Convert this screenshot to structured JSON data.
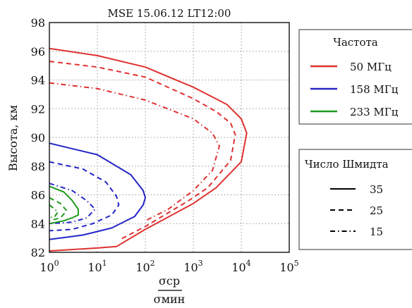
{
  "chart_data": {
    "type": "line",
    "title": "MSE 15.06.12 LT12:00",
    "ylabel": "Высота, км",
    "xlabel": {
      "numerator": "σср",
      "denominator": "σмин"
    },
    "x_scale": "log",
    "xlim": [
      1,
      100000
    ],
    "ylim": [
      82,
      98
    ],
    "x_ticks": [
      {
        "value": 1,
        "base": "10",
        "exp": "0"
      },
      {
        "value": 10,
        "base": "10",
        "exp": "1"
      },
      {
        "value": 100,
        "base": "10",
        "exp": "2"
      },
      {
        "value": 1000,
        "base": "10",
        "exp": "3"
      },
      {
        "value": 10000,
        "base": "10",
        "exp": "4"
      },
      {
        "value": 100000,
        "base": "10",
        "exp": "5"
      }
    ],
    "y_ticks": [
      82,
      84,
      86,
      88,
      90,
      92,
      94,
      96,
      98
    ],
    "grid": true,
    "colors": {
      "50": "#e03131",
      "158": "#2525c8",
      "233": "#1e9a1e"
    },
    "legend_frequency": {
      "title": "Частота",
      "entries": [
        {
          "label": "50 МГц",
          "color": "#e03131"
        },
        {
          "label": "158 МГц",
          "color": "#2525c8"
        },
        {
          "label": "233 МГц",
          "color": "#1e9a1e"
        }
      ]
    },
    "legend_schmidt": {
      "title": "Число Шмидта",
      "entries": [
        {
          "label": "35",
          "style": "solid"
        },
        {
          "label": "25",
          "style": "dashed"
        },
        {
          "label": "15",
          "style": "dashdot"
        }
      ]
    },
    "series": [
      {
        "freq": "50 МГц",
        "schmidt": "35",
        "color": "#e03131",
        "style": "solid",
        "x": [
          1,
          10,
          100,
          1000,
          5000,
          10000,
          13000,
          10000,
          3000,
          1000,
          100,
          25,
          10,
          1
        ],
        "y": [
          96.2,
          95.7,
          94.9,
          93.5,
          92.3,
          91.3,
          90.3,
          88.3,
          86.5,
          85.4,
          83.6,
          82.4,
          82.3,
          82.1
        ]
      },
      {
        "freq": "50 МГц",
        "schmidt": "25",
        "color": "#e03131",
        "style": "dashed",
        "x": [
          1,
          10,
          100,
          1000,
          3000,
          6000,
          7500,
          6000,
          2000,
          800,
          100,
          30
        ],
        "y": [
          95.3,
          94.9,
          94.2,
          92.7,
          91.8,
          91.0,
          90.2,
          88.4,
          86.5,
          85.6,
          83.8,
          82.9
        ]
      },
      {
        "freq": "50 МГц",
        "schmidt": "15",
        "color": "#e03131",
        "style": "dashdot",
        "x": [
          1,
          10,
          100,
          1000,
          2500,
          3500,
          2500,
          1000,
          300,
          100
        ],
        "y": [
          93.8,
          93.4,
          92.6,
          91.3,
          90.3,
          89.4,
          87.7,
          86.3,
          85.0,
          84.2
        ]
      },
      {
        "freq": "158 МГц",
        "schmidt": "35",
        "color": "#2525c8",
        "style": "solid",
        "x": [
          1,
          10,
          50,
          90,
          100,
          90,
          60,
          20,
          5,
          1
        ],
        "y": [
          89.6,
          88.8,
          87.4,
          86.3,
          85.8,
          85.3,
          84.5,
          83.7,
          83.2,
          82.9
        ]
      },
      {
        "freq": "158 МГц",
        "schmidt": "25",
        "color": "#2525c8",
        "style": "dashed",
        "x": [
          1,
          5,
          15,
          25,
          28,
          20,
          8,
          3,
          1
        ],
        "y": [
          88.3,
          87.8,
          86.9,
          85.9,
          85.3,
          84.6,
          84.0,
          83.6,
          83.5
        ]
      },
      {
        "freq": "158 МГц",
        "schmidt": "15",
        "color": "#2525c8",
        "style": "dashdot",
        "x": [
          1,
          3,
          6,
          9,
          6,
          3,
          1
        ],
        "y": [
          86.8,
          86.3,
          85.6,
          85.0,
          84.4,
          84.1,
          84.0
        ]
      },
      {
        "freq": "233 МГц",
        "schmidt": "35",
        "color": "#1e9a1e",
        "style": "solid",
        "x": [
          1,
          2,
          3,
          4,
          4,
          3,
          2,
          1
        ],
        "y": [
          86.6,
          86.2,
          85.6,
          85.0,
          84.6,
          84.4,
          84.2,
          84.0
        ]
      },
      {
        "freq": "233 МГц",
        "schmidt": "25",
        "color": "#1e9a1e",
        "style": "dashed",
        "x": [
          1,
          1.7,
          2.3,
          1.7,
          1
        ],
        "y": [
          85.8,
          85.4,
          84.9,
          84.4,
          84.2
        ]
      },
      {
        "freq": "233 МГц",
        "schmidt": "15",
        "color": "#1e9a1e",
        "style": "dashdot",
        "x": [
          1,
          1.3,
          1.5,
          1.3,
          1
        ],
        "y": [
          85.3,
          85.0,
          84.8,
          84.5,
          84.4
        ]
      }
    ]
  }
}
